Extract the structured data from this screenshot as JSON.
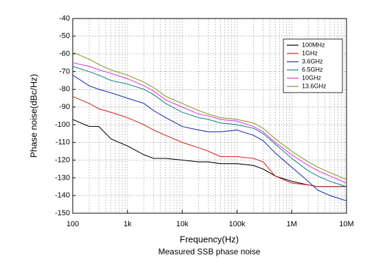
{
  "chart_data": {
    "type": "line",
    "caption": "Measured SSB phase noise",
    "x_label": "Frequency(Hz)",
    "y_label": "Phase noise(dBc/Hz)",
    "x": [
      100,
      200,
      300,
      500,
      1000,
      2000,
      3000,
      5000,
      10000,
      20000,
      30000,
      50000,
      100000,
      200000,
      300000,
      500000,
      1000000,
      2000000,
      3000000,
      5000000,
      10000000
    ],
    "series": [
      {
        "name": "100MHz",
        "color": "#000000",
        "values": [
          -97,
          -101,
          -101,
          -108,
          -112,
          -117,
          -119,
          -119,
          -120,
          -121,
          -121,
          -122,
          -122,
          -123,
          -125,
          -129,
          -132,
          -134,
          -135,
          -135,
          -135
        ]
      },
      {
        "name": "1GHz",
        "color": "#d42a2a",
        "values": [
          -84,
          -88,
          -91,
          -93,
          -96,
          -100,
          -103,
          -106,
          -110,
          -113,
          -115,
          -118,
          -118,
          -119,
          -121,
          -129,
          -133,
          -134,
          -135,
          -135,
          -135
        ]
      },
      {
        "name": "3.6GHz",
        "color": "#2233b0",
        "values": [
          -72,
          -78,
          -80,
          -82,
          -85,
          -88,
          -92,
          -96,
          -101,
          -103,
          -104,
          -104,
          -103,
          -106,
          -109,
          -116,
          -124,
          -132,
          -137,
          -140,
          -143
        ]
      },
      {
        "name": "6.5GHz",
        "color": "#1a8a8a",
        "values": [
          -67,
          -70,
          -72,
          -75,
          -77,
          -80,
          -83,
          -88,
          -93,
          -96,
          -97,
          -99,
          -100,
          -102,
          -105,
          -111,
          -119,
          -126,
          -129,
          -132,
          -135
        ]
      },
      {
        "name": "10GHz",
        "color": "#e03ce0",
        "values": [
          -65,
          -67,
          -69,
          -71,
          -74,
          -78,
          -81,
          -86,
          -90,
          -94,
          -95,
          -97,
          -98,
          -101,
          -104,
          -110,
          -117,
          -123,
          -126,
          -129,
          -133
        ]
      },
      {
        "name": "13.6GHz",
        "color": "#8c9a22",
        "values": [
          -59,
          -63,
          -66,
          -69,
          -72,
          -76,
          -79,
          -84,
          -88,
          -92,
          -94,
          -96,
          -97,
          -99,
          -102,
          -108,
          -115,
          -121,
          -124,
          -127,
          -131
        ]
      }
    ],
    "xscale": "log",
    "xlim": [
      100,
      10000000
    ],
    "xticks": [
      100,
      {
        "value": 1000,
        "label": "1k"
      },
      {
        "value": 10000,
        "label": "10k"
      },
      {
        "value": 100000,
        "label": "100k"
      },
      {
        "value": 1000000,
        "label": "1M"
      },
      {
        "value": 10000000,
        "label": "10M"
      }
    ],
    "ylim": [
      -150,
      -40
    ],
    "yticks": [
      -150,
      -140,
      -130,
      -120,
      -110,
      -100,
      -90,
      -80,
      -70,
      -60,
      -50,
      -40
    ],
    "grid": true,
    "legend": "upper right"
  }
}
